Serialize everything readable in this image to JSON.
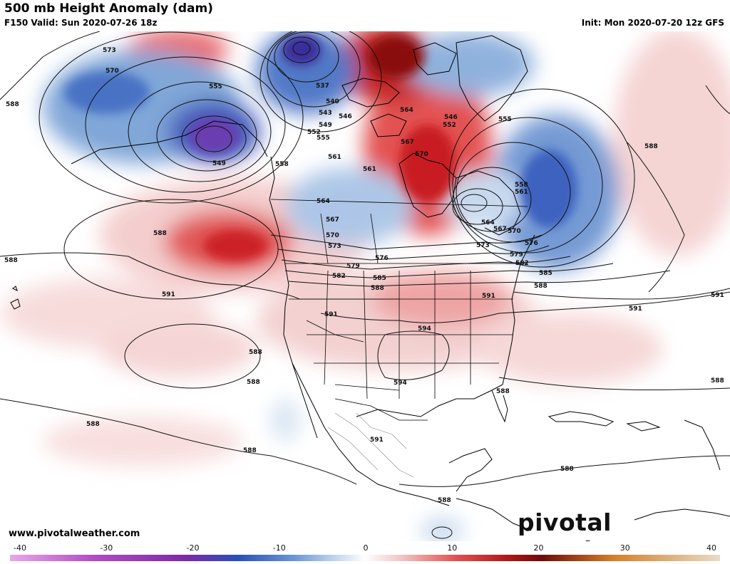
{
  "header": {
    "title": "500 mb Height Anomaly (dam)",
    "valid": "F150 Valid: Sun 2020-07-26 18z",
    "init": "Init: Mon 2020-07-20 12z GFS"
  },
  "footer": {
    "url": "www.pivotalweather.com",
    "logo": "pivotal weather"
  },
  "colorbar": {
    "ticks": [
      "-40",
      "-30",
      "-20",
      "-10",
      "0",
      "10",
      "20",
      "30",
      "40"
    ],
    "colors": {
      "neg_far": "#e7a8ea",
      "neg_purple": "#7c2aa6",
      "neg_blue": "#2750b5",
      "neg_light": "#c4d8ee",
      "zero": "#ffffff",
      "pos_light": "#f2c6c6",
      "pos_red": "#d9262b",
      "pos_dark": "#6e0b0b",
      "pos_orange": "#d2802a",
      "pos_far": "#e8dcc9"
    }
  },
  "contour_labels": [
    {
      "id": "l1",
      "text": "573"
    },
    {
      "id": "l2",
      "text": "570"
    },
    {
      "id": "l3",
      "text": "555"
    },
    {
      "id": "l4",
      "text": "549"
    },
    {
      "id": "l5",
      "text": "558"
    },
    {
      "id": "l6",
      "text": "537"
    },
    {
      "id": "l7",
      "text": "540"
    },
    {
      "id": "l8",
      "text": "543"
    },
    {
      "id": "l9",
      "text": "546"
    },
    {
      "id": "l10",
      "text": "549"
    },
    {
      "id": "l11",
      "text": "552"
    },
    {
      "id": "l12",
      "text": "555"
    },
    {
      "id": "l13",
      "text": "561"
    },
    {
      "id": "l14",
      "text": "564"
    },
    {
      "id": "l15",
      "text": "567"
    },
    {
      "id": "l16",
      "text": "570"
    },
    {
      "id": "l17",
      "text": "573"
    },
    {
      "id": "l18",
      "text": "576"
    },
    {
      "id": "l19",
      "text": "579"
    },
    {
      "id": "l20",
      "text": "582"
    },
    {
      "id": "l21",
      "text": "585"
    },
    {
      "id": "l22",
      "text": "588"
    },
    {
      "id": "l23",
      "text": "561"
    },
    {
      "id": "l24",
      "text": "564"
    },
    {
      "id": "l25",
      "text": "567"
    },
    {
      "id": "l26",
      "text": "570"
    },
    {
      "id": "l27",
      "text": "546"
    },
    {
      "id": "l28",
      "text": "552"
    },
    {
      "id": "l29",
      "text": "555"
    },
    {
      "id": "l30",
      "text": "558"
    },
    {
      "id": "l31",
      "text": "561"
    },
    {
      "id": "l32",
      "text": "564"
    },
    {
      "id": "l33",
      "text": "567"
    },
    {
      "id": "l34",
      "text": "570"
    },
    {
      "id": "l35",
      "text": "573"
    },
    {
      "id": "l36",
      "text": "576"
    },
    {
      "id": "l37",
      "text": "579"
    },
    {
      "id": "l38",
      "text": "582"
    },
    {
      "id": "l39",
      "text": "585"
    },
    {
      "id": "l40",
      "text": "588"
    },
    {
      "id": "l41",
      "text": "591"
    },
    {
      "id": "l42",
      "text": "594"
    },
    {
      "id": "l43",
      "text": "594"
    },
    {
      "id": "l44",
      "text": "591"
    },
    {
      "id": "l45",
      "text": "591"
    },
    {
      "id": "l46",
      "text": "591"
    },
    {
      "id": "l47",
      "text": "588"
    },
    {
      "id": "l48",
      "text": "588"
    },
    {
      "id": "l49",
      "text": "588"
    },
    {
      "id": "l50",
      "text": "588"
    },
    {
      "id": "l51",
      "text": "591"
    },
    {
      "id": "l52",
      "text": "588"
    },
    {
      "id": "l53",
      "text": "588"
    },
    {
      "id": "l54",
      "text": "588"
    },
    {
      "id": "l55",
      "text": "588"
    },
    {
      "id": "l56",
      "text": "591"
    },
    {
      "id": "l57",
      "text": "588"
    },
    {
      "id": "l58",
      "text": "588"
    },
    {
      "id": "l59",
      "text": "588"
    },
    {
      "id": "l60",
      "text": "588"
    }
  ]
}
